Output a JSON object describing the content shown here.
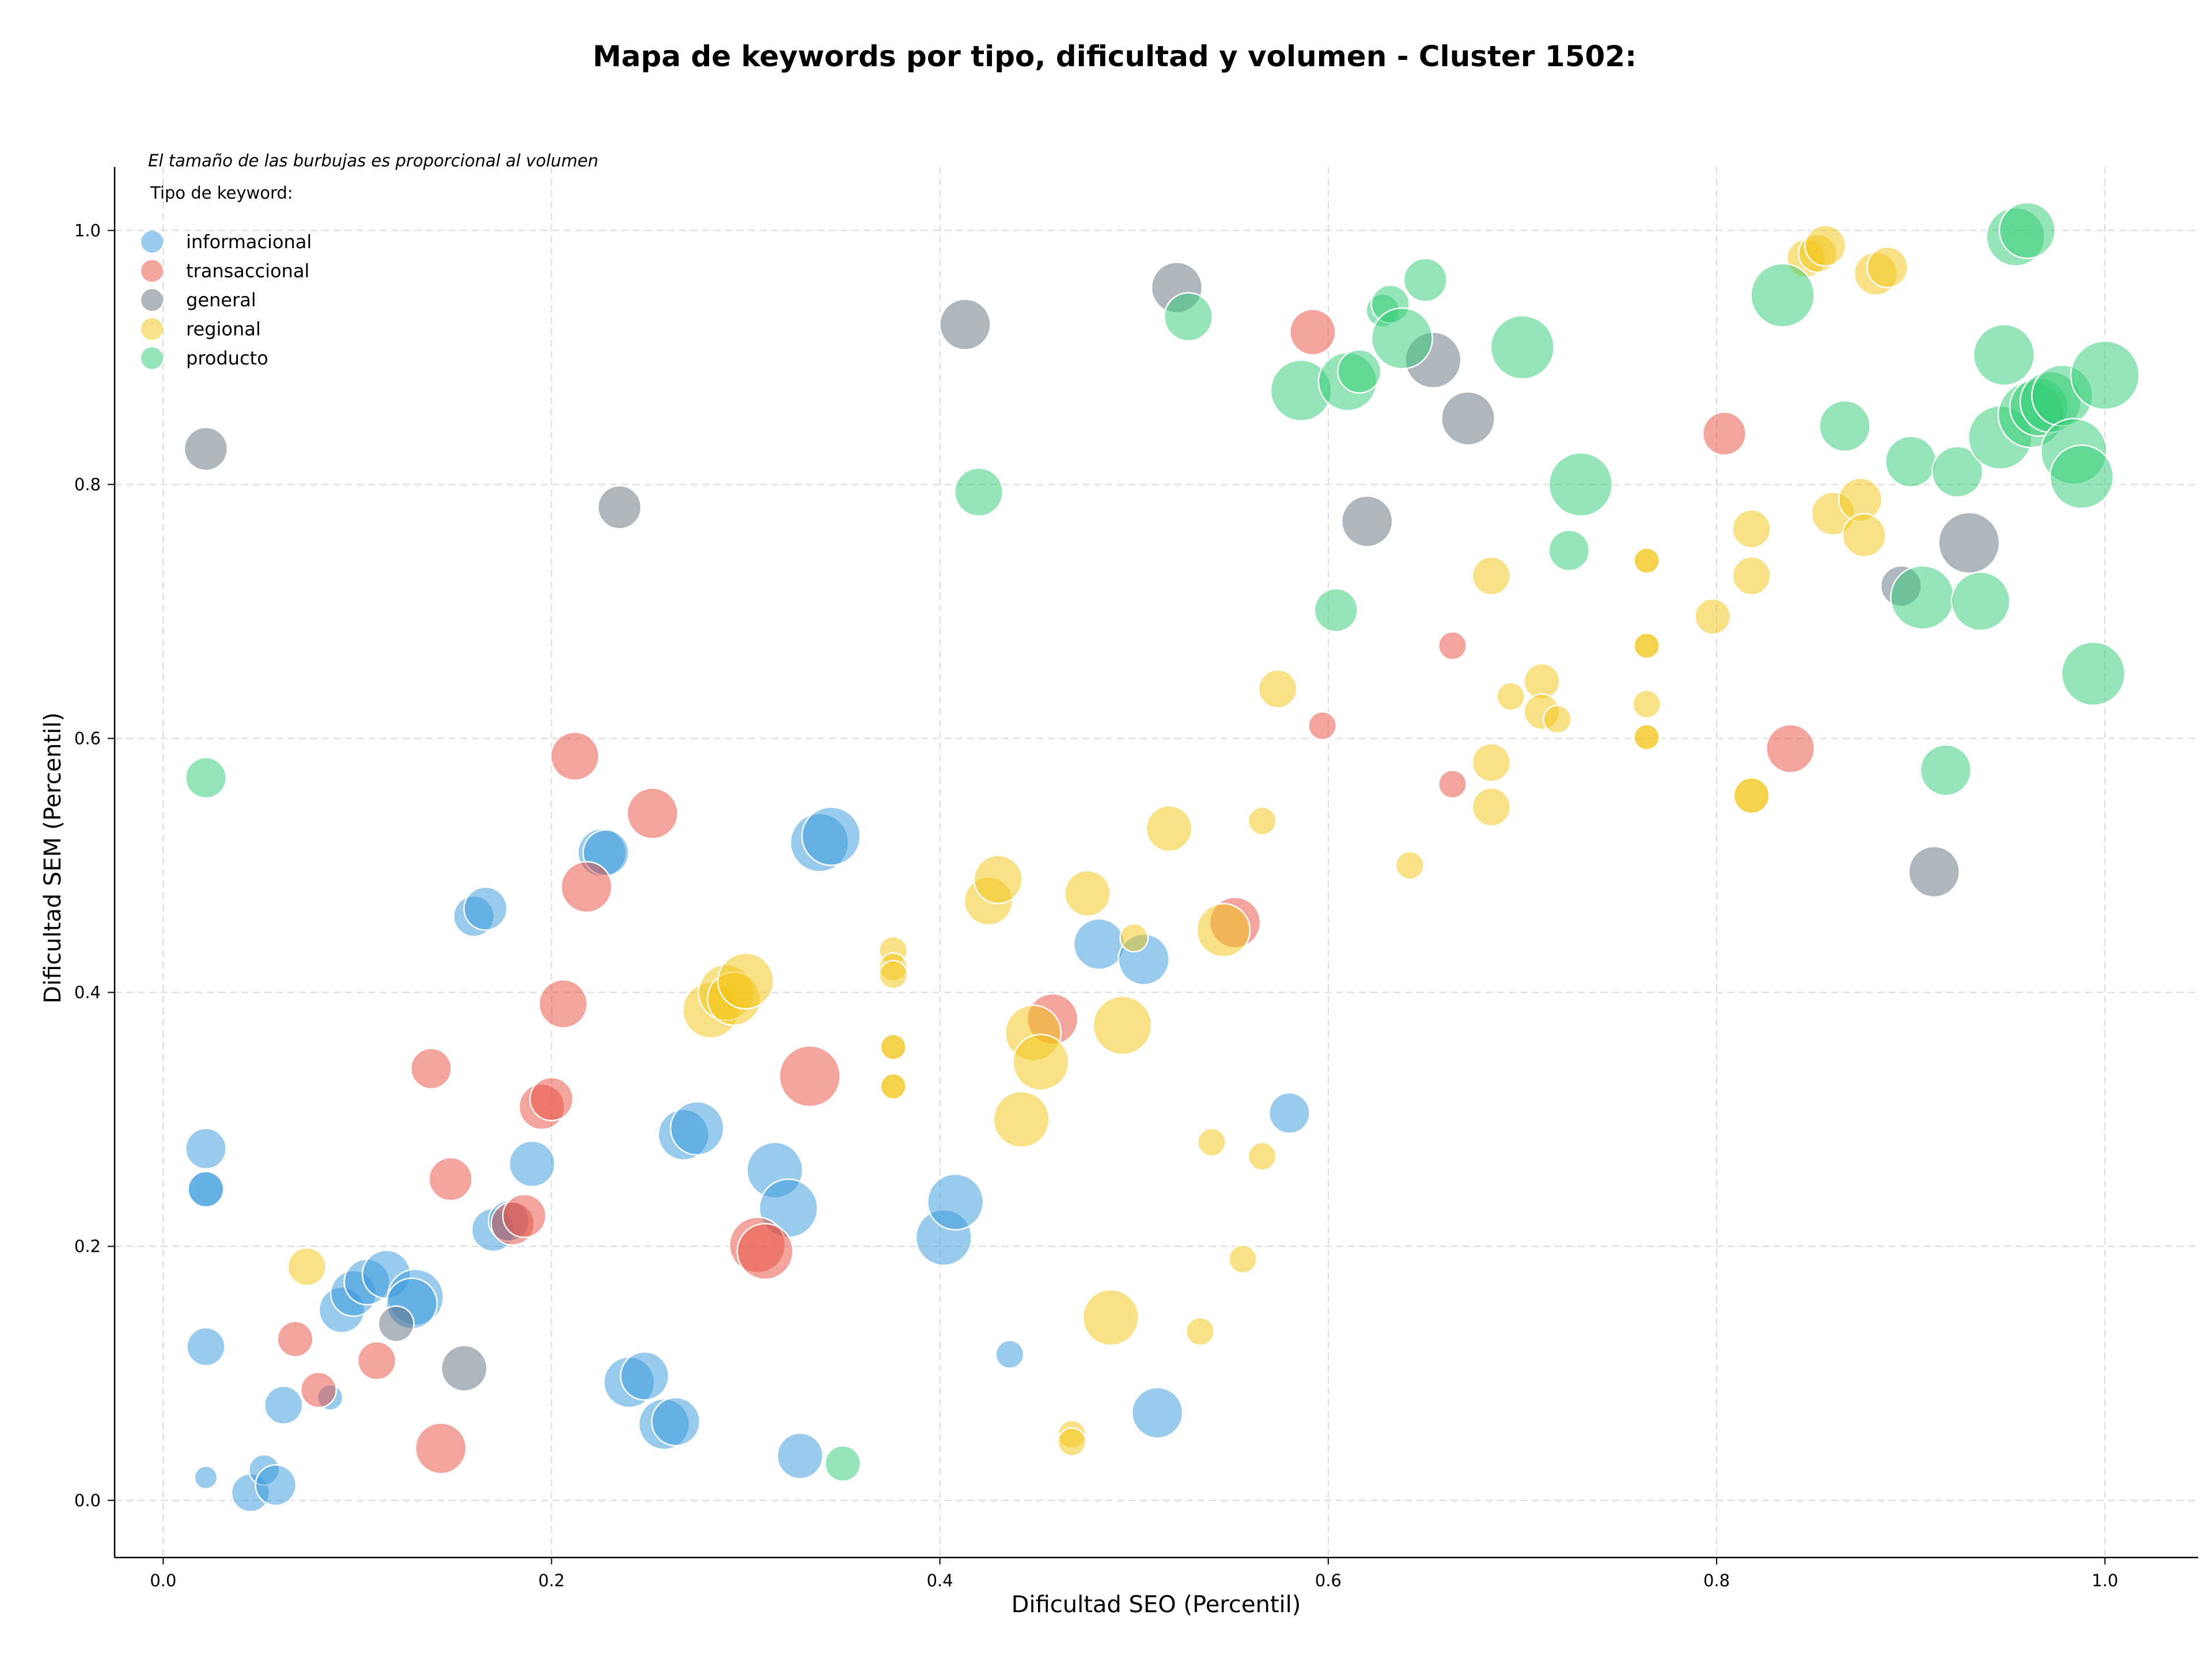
{
  "chart_data": {
    "type": "scatter",
    "title": "Mapa de keywords por tipo, dificultad y volumen - Cluster 1502:",
    "xlabel": "Dificultad SEO (Percentil)",
    "ylabel": "Dificultad SEM (Percentil)",
    "xlim": [
      -0.025,
      1.048
    ],
    "ylim": [
      -0.045,
      1.05
    ],
    "x_ticks": [
      "0.0",
      "0.2",
      "0.4",
      "0.6",
      "0.8",
      "1.0"
    ],
    "y_ticks": [
      "0.0",
      "0.2",
      "0.4",
      "0.6",
      "0.8",
      "1.0"
    ],
    "grid": true,
    "size_note": "El tamaño de las burbujas es proporcional al volumen",
    "legend_title": "Tipo de keyword:",
    "legend_position": "top-left",
    "series": [
      {
        "name": "informacional",
        "color": "#3498db",
        "points": [
          [
            0.022,
            0.018,
            18
          ],
          [
            0.045,
            0.006,
            30
          ],
          [
            0.052,
            0.024,
            24
          ],
          [
            0.058,
            0.012,
            32
          ],
          [
            0.062,
            0.075,
            30
          ],
          [
            0.086,
            0.081,
            20
          ],
          [
            0.022,
            0.121,
            30
          ],
          [
            0.092,
            0.15,
            36
          ],
          [
            0.098,
            0.163,
            36
          ],
          [
            0.105,
            0.172,
            36
          ],
          [
            0.115,
            0.178,
            38
          ],
          [
            0.13,
            0.16,
            44
          ],
          [
            0.128,
            0.155,
            40
          ],
          [
            0.022,
            0.277,
            32
          ],
          [
            0.022,
            0.245,
            30
          ],
          [
            0.022,
            0.245,
            28
          ],
          [
            0.16,
            0.46,
            32
          ],
          [
            0.166,
            0.466,
            34
          ],
          [
            0.17,
            0.213,
            34
          ],
          [
            0.178,
            0.22,
            32
          ],
          [
            0.19,
            0.265,
            36
          ],
          [
            0.226,
            0.51,
            38
          ],
          [
            0.228,
            0.51,
            36
          ],
          [
            0.24,
            0.093,
            40
          ],
          [
            0.248,
            0.098,
            38
          ],
          [
            0.258,
            0.06,
            40
          ],
          [
            0.264,
            0.062,
            38
          ],
          [
            0.268,
            0.288,
            40
          ],
          [
            0.275,
            0.293,
            42
          ],
          [
            0.315,
            0.26,
            44
          ],
          [
            0.322,
            0.23,
            46
          ],
          [
            0.328,
            0.035,
            36
          ],
          [
            0.338,
            0.518,
            46
          ],
          [
            0.344,
            0.523,
            46
          ],
          [
            0.402,
            0.207,
            44
          ],
          [
            0.408,
            0.235,
            44
          ],
          [
            0.436,
            0.115,
            22
          ],
          [
            0.482,
            0.438,
            40
          ],
          [
            0.505,
            0.426,
            40
          ],
          [
            0.512,
            0.069,
            40
          ],
          [
            0.58,
            0.305,
            32
          ]
        ]
      },
      {
        "name": "transaccional",
        "color": "#e74c3c",
        "points": [
          [
            0.068,
            0.127,
            28
          ],
          [
            0.08,
            0.087,
            28
          ],
          [
            0.11,
            0.11,
            30
          ],
          [
            0.138,
            0.34,
            32
          ],
          [
            0.143,
            0.041,
            40
          ],
          [
            0.148,
            0.253,
            34
          ],
          [
            0.18,
            0.218,
            34
          ],
          [
            0.186,
            0.224,
            34
          ],
          [
            0.195,
            0.31,
            36
          ],
          [
            0.2,
            0.316,
            34
          ],
          [
            0.206,
            0.391,
            38
          ],
          [
            0.212,
            0.586,
            38
          ],
          [
            0.218,
            0.483,
            40
          ],
          [
            0.252,
            0.541,
            40
          ],
          [
            0.306,
            0.201,
            44
          ],
          [
            0.31,
            0.196,
            44
          ],
          [
            0.333,
            0.334,
            48
          ],
          [
            0.458,
            0.379,
            40
          ],
          [
            0.552,
            0.455,
            40
          ],
          [
            0.592,
            0.92,
            36
          ],
          [
            0.597,
            0.61,
            22
          ],
          [
            0.664,
            0.673,
            22
          ],
          [
            0.664,
            0.564,
            22
          ],
          [
            0.804,
            0.84,
            34
          ],
          [
            0.838,
            0.592,
            38
          ]
        ]
      },
      {
        "name": "general",
        "color": "#5d6d7e",
        "points": [
          [
            0.022,
            0.828,
            34
          ],
          [
            0.12,
            0.139,
            28
          ],
          [
            0.155,
            0.104,
            36
          ],
          [
            0.235,
            0.782,
            34
          ],
          [
            0.413,
            0.926,
            40
          ],
          [
            0.522,
            0.955,
            40
          ],
          [
            0.62,
            0.771,
            40
          ],
          [
            0.654,
            0.898,
            44
          ],
          [
            0.672,
            0.852,
            42
          ],
          [
            0.895,
            0.72,
            32
          ],
          [
            0.912,
            0.495,
            40
          ],
          [
            0.93,
            0.754,
            48
          ]
        ]
      },
      {
        "name": "regional",
        "color": "#f1c40f",
        "points": [
          [
            0.074,
            0.184,
            30
          ],
          [
            0.282,
            0.386,
            44
          ],
          [
            0.29,
            0.4,
            44
          ],
          [
            0.294,
            0.395,
            42
          ],
          [
            0.3,
            0.409,
            44
          ],
          [
            0.376,
            0.433,
            22
          ],
          [
            0.376,
            0.42,
            22
          ],
          [
            0.376,
            0.414,
            22
          ],
          [
            0.376,
            0.357,
            22
          ],
          [
            0.376,
            0.357,
            20
          ],
          [
            0.376,
            0.326,
            22
          ],
          [
            0.376,
            0.326,
            20
          ],
          [
            0.425,
            0.472,
            38
          ],
          [
            0.43,
            0.489,
            38
          ],
          [
            0.442,
            0.3,
            44
          ],
          [
            0.448,
            0.368,
            44
          ],
          [
            0.452,
            0.345,
            44
          ],
          [
            0.468,
            0.052,
            22
          ],
          [
            0.468,
            0.046,
            22
          ],
          [
            0.476,
            0.478,
            36
          ],
          [
            0.488,
            0.144,
            44
          ],
          [
            0.494,
            0.374,
            46
          ],
          [
            0.5,
            0.443,
            22
          ],
          [
            0.518,
            0.529,
            36
          ],
          [
            0.534,
            0.133,
            22
          ],
          [
            0.54,
            0.282,
            22
          ],
          [
            0.546,
            0.449,
            42
          ],
          [
            0.556,
            0.19,
            22
          ],
          [
            0.566,
            0.535,
            22
          ],
          [
            0.566,
            0.271,
            22
          ],
          [
            0.574,
            0.639,
            30
          ],
          [
            0.642,
            0.5,
            22
          ],
          [
            0.684,
            0.728,
            30
          ],
          [
            0.684,
            0.581,
            30
          ],
          [
            0.684,
            0.546,
            30
          ],
          [
            0.694,
            0.633,
            22
          ],
          [
            0.71,
            0.645,
            28
          ],
          [
            0.71,
            0.621,
            28
          ],
          [
            0.718,
            0.615,
            22
          ],
          [
            0.764,
            0.74,
            22
          ],
          [
            0.764,
            0.74,
            20
          ],
          [
            0.764,
            0.673,
            22
          ],
          [
            0.764,
            0.673,
            20
          ],
          [
            0.764,
            0.627,
            22
          ],
          [
            0.764,
            0.601,
            22
          ],
          [
            0.764,
            0.601,
            20
          ],
          [
            0.798,
            0.696,
            28
          ],
          [
            0.818,
            0.765,
            30
          ],
          [
            0.818,
            0.728,
            30
          ],
          [
            0.818,
            0.555,
            30
          ],
          [
            0.818,
            0.555,
            28
          ],
          [
            0.846,
            0.978,
            30
          ],
          [
            0.852,
            0.982,
            30
          ],
          [
            0.856,
            0.988,
            32
          ],
          [
            0.86,
            0.777,
            34
          ],
          [
            0.874,
            0.788,
            34
          ],
          [
            0.876,
            0.76,
            34
          ],
          [
            0.882,
            0.966,
            34
          ],
          [
            0.888,
            0.971,
            32
          ]
        ]
      },
      {
        "name": "producto",
        "color": "#2ecc71",
        "points": [
          [
            0.022,
            0.569,
            32
          ],
          [
            0.35,
            0.029,
            28
          ],
          [
            0.42,
            0.794,
            38
          ],
          [
            0.528,
            0.932,
            38
          ],
          [
            0.586,
            0.874,
            48
          ],
          [
            0.604,
            0.701,
            34
          ],
          [
            0.61,
            0.881,
            46
          ],
          [
            0.616,
            0.889,
            34
          ],
          [
            0.628,
            0.937,
            26
          ],
          [
            0.632,
            0.942,
            30
          ],
          [
            0.638,
            0.915,
            48
          ],
          [
            0.65,
            0.961,
            34
          ],
          [
            0.7,
            0.908,
            50
          ],
          [
            0.724,
            0.748,
            32
          ],
          [
            0.73,
            0.8,
            50
          ],
          [
            0.834,
            0.949,
            50
          ],
          [
            0.866,
            0.846,
            40
          ],
          [
            0.9,
            0.818,
            40
          ],
          [
            0.906,
            0.711,
            50
          ],
          [
            0.918,
            0.575,
            40
          ],
          [
            0.924,
            0.81,
            40
          ],
          [
            0.936,
            0.708,
            46
          ],
          [
            0.946,
            0.837,
            50
          ],
          [
            0.948,
            0.902,
            48
          ],
          [
            0.954,
            0.995,
            46
          ],
          [
            0.96,
            1.0,
            44
          ],
          [
            0.962,
            0.855,
            52
          ],
          [
            0.966,
            0.861,
            46
          ],
          [
            0.972,
            0.865,
            48
          ],
          [
            0.978,
            0.87,
            48
          ],
          [
            0.984,
            0.826,
            52
          ],
          [
            0.988,
            0.806,
            50
          ],
          [
            0.994,
            0.651,
            50
          ],
          [
            1.0,
            0.886,
            54
          ]
        ]
      }
    ]
  }
}
